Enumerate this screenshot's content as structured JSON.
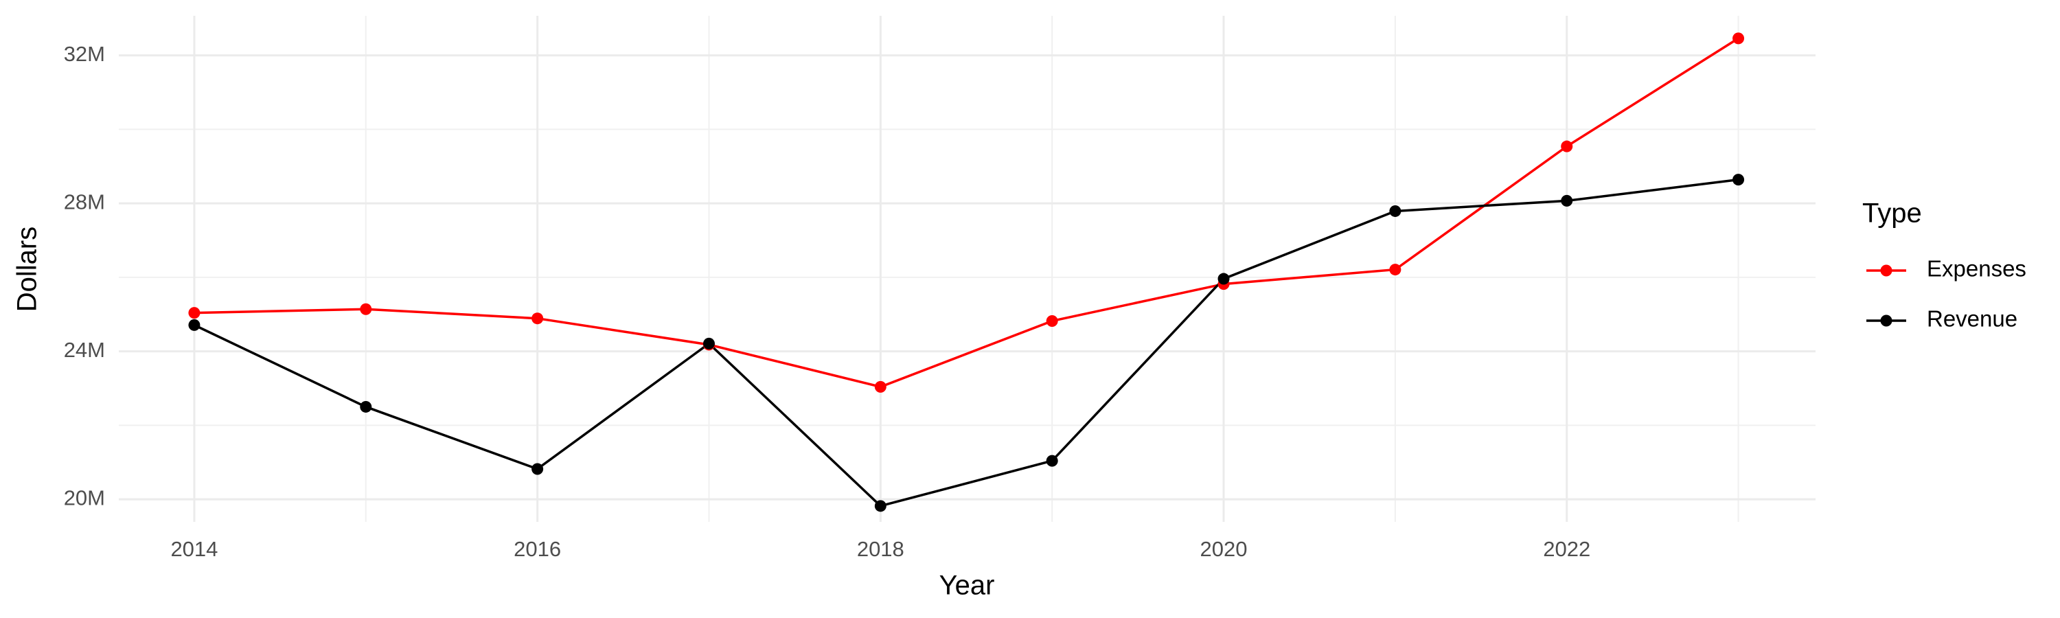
{
  "chart_data": {
    "type": "line",
    "x_label": "Year",
    "y_label": "Dollars",
    "x": [
      2014,
      2015,
      2016,
      2017,
      2018,
      2019,
      2020,
      2021,
      2022,
      2023
    ],
    "series": [
      {
        "name": "Expenses",
        "color": "#ff0000",
        "values": [
          25040000,
          25140000,
          24890000,
          24180000,
          23040000,
          24820000,
          25820000,
          26210000,
          29540000,
          32460000
        ]
      },
      {
        "name": "Revenue",
        "color": "#000000",
        "values": [
          24710000,
          22500000,
          20820000,
          24210000,
          19820000,
          21040000,
          25960000,
          27790000,
          28070000,
          28640000
        ]
      }
    ],
    "xlim": [
      2013.56,
      2023.45
    ],
    "xticks": [
      2014,
      2016,
      2018,
      2020,
      2022
    ],
    "minor_xticks": [
      2015,
      2017,
      2019,
      2021,
      2023
    ],
    "ylim": [
      19390000,
      33070000
    ],
    "yticks": [
      {
        "value": 20000000,
        "label": "20M"
      },
      {
        "value": 24000000,
        "label": "24M"
      },
      {
        "value": 28000000,
        "label": "28M"
      },
      {
        "value": 32000000,
        "label": "32M"
      }
    ],
    "minor_yticks": [
      22000000,
      26000000,
      30000000
    ],
    "grid": true,
    "legend_title": "Type",
    "legend_position": "right"
  }
}
